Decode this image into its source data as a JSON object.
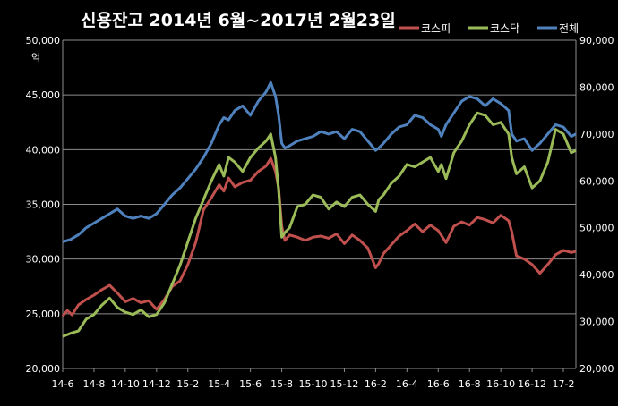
{
  "chart_data": {
    "type": "line",
    "title": "신용잔고 2014년 6월~2017년 2월23일",
    "unit_label": "억",
    "y_left": {
      "min": 20000,
      "max": 50000,
      "ticks": [
        "20,000",
        "25,000",
        "30,000",
        "35,000",
        "40,000",
        "45,000",
        "50,000"
      ],
      "tick_values": [
        20000,
        25000,
        30000,
        35000,
        40000,
        45000,
        50000
      ]
    },
    "y_right": {
      "min": 20000,
      "max": 90000,
      "ticks": [
        "20,000",
        "30,000",
        "40,000",
        "50,000",
        "60,000",
        "70,000",
        "80,000",
        "90,000"
      ],
      "tick_values": [
        20000,
        30000,
        40000,
        50000,
        60000,
        70000,
        80000,
        90000
      ]
    },
    "x_ticks": [
      "14-6",
      "14-8",
      "14-10",
      "14-12",
      "15-2",
      "15-4",
      "15-6",
      "15-8",
      "15-10",
      "15-12",
      "16-2",
      "16-4",
      "16-6",
      "16-8",
      "16-10",
      "16-12",
      "17-2"
    ],
    "x_tick_index": [
      0,
      2,
      4,
      6,
      8,
      10,
      12,
      14,
      16,
      18,
      20,
      22,
      24,
      26,
      28,
      30,
      32
    ],
    "x_max_index": 32.8,
    "grid": true,
    "legend_position": "top-right",
    "series": [
      {
        "name": "코스피",
        "color": "#c0504d",
        "axis": "left",
        "x": [
          0,
          0.3,
          0.6,
          1,
          1.5,
          2,
          2.5,
          3,
          3.5,
          4,
          4.5,
          5,
          5.5,
          6,
          6.5,
          7,
          7.5,
          8,
          8.5,
          9,
          9.5,
          10,
          10.3,
          10.6,
          11,
          11.5,
          12,
          12.5,
          13,
          13.3,
          13.6,
          13.8,
          14,
          14.2,
          14.5,
          15,
          15.5,
          16,
          16.5,
          17,
          17.5,
          18,
          18.5,
          19,
          19.5,
          20,
          20.2,
          20.5,
          21,
          21.5,
          22,
          22.5,
          23,
          23.5,
          24,
          24.5,
          25,
          25.5,
          26,
          26.5,
          27,
          27.5,
          28,
          28.5,
          28.7,
          29,
          29.5,
          30,
          30.5,
          31,
          31.5,
          32,
          32.5,
          32.8
        ],
        "values": [
          24800,
          25300,
          24900,
          25800,
          26300,
          26700,
          27200,
          27600,
          26900,
          26100,
          26400,
          26000,
          26200,
          25400,
          26300,
          27500,
          28000,
          29500,
          31500,
          34500,
          35600,
          36800,
          36200,
          37400,
          36600,
          37000,
          37200,
          38000,
          38500,
          39200,
          38000,
          36500,
          33000,
          31700,
          32200,
          32000,
          31700,
          32000,
          32100,
          31900,
          32300,
          31400,
          32200,
          31700,
          31000,
          29200,
          29600,
          30500,
          31300,
          32100,
          32600,
          33200,
          32500,
          33100,
          32600,
          31500,
          33000,
          33400,
          33100,
          33800,
          33600,
          33300,
          34000,
          33500,
          32500,
          30300,
          30000,
          29500,
          28700,
          29500,
          30400,
          30800,
          30600,
          30700
        ]
      },
      {
        "name": "코스닥",
        "color": "#9bbb59",
        "axis": "right",
        "x": [
          0,
          0.5,
          1,
          1.5,
          2,
          2.5,
          3,
          3.5,
          4,
          4.5,
          5,
          5.5,
          6,
          6.5,
          7,
          7.5,
          8,
          8.5,
          9,
          9.5,
          10,
          10.3,
          10.6,
          11,
          11.5,
          12,
          12.5,
          13,
          13.3,
          13.6,
          13.8,
          14,
          14.2,
          14.5,
          15,
          15.5,
          16,
          16.5,
          17,
          17.5,
          18,
          18.5,
          19,
          19.5,
          20,
          20.2,
          20.5,
          21,
          21.5,
          22,
          22.5,
          23,
          23.5,
          24,
          24.2,
          24.5,
          25,
          25.5,
          26,
          26.5,
          27,
          27.5,
          28,
          28.5,
          28.7,
          29,
          29.5,
          30,
          30.5,
          31,
          31.5,
          32,
          32.5,
          32.8
        ],
        "values": [
          26800,
          27500,
          28000,
          30500,
          31500,
          33500,
          35000,
          33000,
          32000,
          31500,
          32500,
          31000,
          31500,
          34000,
          38000,
          42000,
          47000,
          52000,
          56000,
          60000,
          63500,
          61000,
          65000,
          64000,
          62000,
          65000,
          67000,
          68500,
          70000,
          65000,
          58000,
          48000,
          49000,
          50000,
          54500,
          55000,
          57000,
          56500,
          54000,
          55500,
          54500,
          56500,
          57000,
          55000,
          53500,
          56000,
          57000,
          59500,
          61000,
          63500,
          63000,
          64000,
          65000,
          62000,
          63500,
          60500,
          66000,
          68500,
          72000,
          74500,
          74000,
          72000,
          72500,
          70000,
          65000,
          61500,
          63000,
          58500,
          60000,
          64000,
          71000,
          70000,
          66000,
          66500
        ]
      },
      {
        "name": "전체",
        "color": "#4f81bd",
        "axis": "right",
        "x": [
          0,
          0.5,
          1,
          1.5,
          2,
          2.5,
          3,
          3.5,
          4,
          4.5,
          5,
          5.5,
          6,
          6.5,
          7,
          7.5,
          8,
          8.5,
          9,
          9.5,
          10,
          10.3,
          10.6,
          11,
          11.5,
          12,
          12.5,
          13,
          13.3,
          13.6,
          13.8,
          14,
          14.2,
          14.5,
          15,
          15.5,
          16,
          16.5,
          17,
          17.5,
          18,
          18.5,
          19,
          19.5,
          20,
          20.2,
          20.5,
          21,
          21.5,
          22,
          22.5,
          23,
          23.5,
          24,
          24.2,
          24.5,
          25,
          25.5,
          26,
          26.5,
          27,
          27.5,
          28,
          28.5,
          28.7,
          29,
          29.5,
          30,
          30.5,
          31,
          31.5,
          32,
          32.5,
          32.8
        ],
        "values": [
          47000,
          47500,
          48500,
          50000,
          51000,
          52000,
          53000,
          54000,
          52500,
          52000,
          52500,
          52000,
          53000,
          55000,
          57000,
          58500,
          60500,
          62500,
          65000,
          68000,
          72000,
          73500,
          73000,
          75000,
          76000,
          74000,
          77000,
          79000,
          81000,
          78000,
          74000,
          68000,
          67000,
          67500,
          68500,
          69000,
          69500,
          70500,
          70000,
          70500,
          69000,
          71000,
          70500,
          68500,
          66500,
          67000,
          68000,
          70000,
          71500,
          72000,
          74000,
          73500,
          72000,
          71000,
          69500,
          72000,
          74500,
          77000,
          78000,
          77500,
          76000,
          77500,
          76500,
          75000,
          70000,
          68500,
          69000,
          66500,
          68000,
          70000,
          72000,
          71500,
          69500,
          70000
        ]
      }
    ]
  }
}
